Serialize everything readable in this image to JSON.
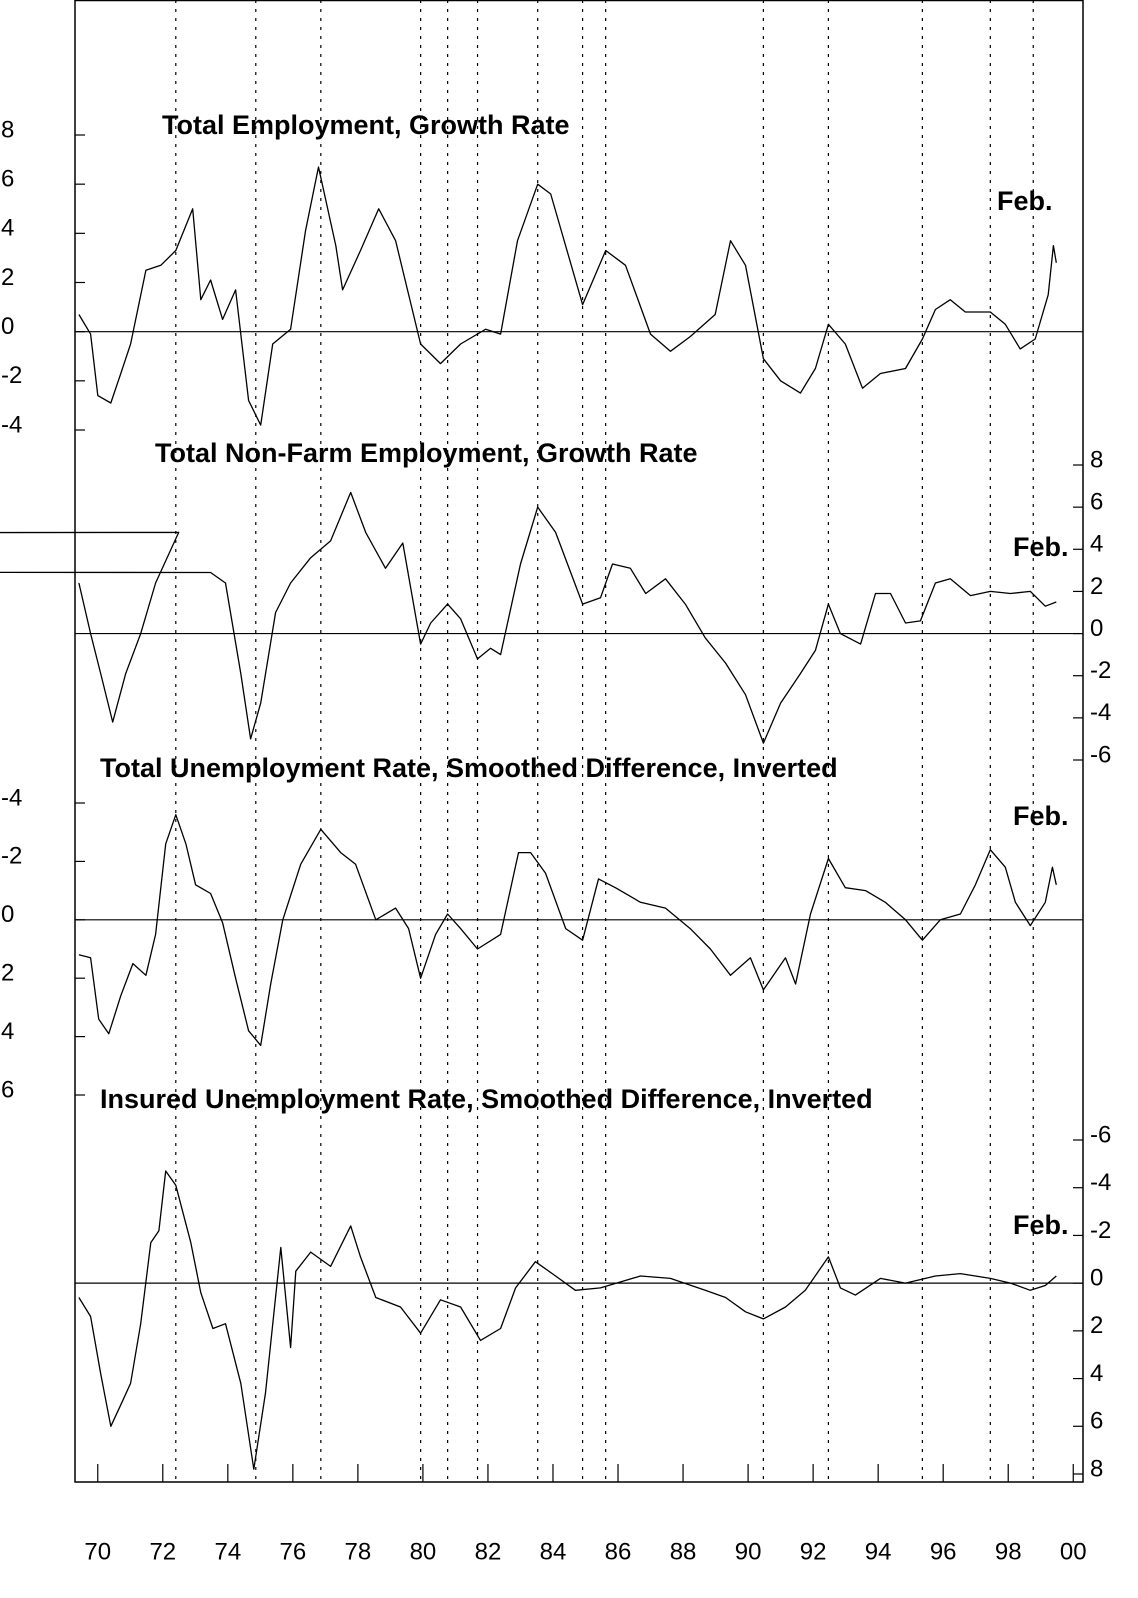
{
  "chart_data": [
    {
      "type": "line",
      "title": "Total Employment, Growth Rate",
      "annotation": "Feb.",
      "axis_side": "left",
      "y_inverted": false,
      "color": "#000000",
      "ylim": [
        -4,
        8
      ],
      "yticks": [
        8,
        6,
        4,
        2,
        0,
        -2,
        -4
      ],
      "x": [
        1969.42,
        1969.78,
        1970.0,
        1970.4,
        1970.71,
        1971.01,
        1971.48,
        1971.94,
        1972.4,
        1972.92,
        1973.17,
        1973.47,
        1973.84,
        1974.24,
        1974.64,
        1975.01,
        1975.38,
        1975.93,
        1976.39,
        1976.79,
        1977.32,
        1977.53,
        1978.08,
        1978.64,
        1979.16,
        1979.93,
        1980.54,
        1981.16,
        1981.93,
        1982.39,
        1982.91,
        1983.53,
        1983.93,
        1984.91,
        1985.62,
        1986.23,
        1987.0,
        1987.61,
        1988.22,
        1988.99,
        1989.46,
        1989.92,
        1990.47,
        1991.0,
        1991.61,
        1992.07,
        1992.47,
        1992.99,
        1993.52,
        1994.07,
        1994.84,
        1995.36,
        1995.76,
        1996.22,
        1996.68,
        1997.45,
        1997.91,
        1998.37,
        1998.83,
        1999.23,
        1999.39,
        1999.48
      ],
      "values": [
        0.7,
        -0.1,
        -2.6,
        -2.9,
        -1.7,
        -0.5,
        2.5,
        2.7,
        3.3,
        5.0,
        1.3,
        2.1,
        0.5,
        1.7,
        -2.8,
        -3.8,
        -0.5,
        0.1,
        4.1,
        6.7,
        3.5,
        1.7,
        3.3,
        5.0,
        3.7,
        -0.5,
        -1.3,
        -0.5,
        0.1,
        -0.1,
        3.7,
        6.0,
        5.6,
        1.1,
        3.3,
        2.7,
        -0.1,
        -0.8,
        -0.2,
        0.7,
        3.7,
        2.7,
        -1.1,
        -2.0,
        -2.5,
        -1.5,
        0.3,
        -0.5,
        -2.3,
        -1.7,
        -1.5,
        -0.3,
        0.9,
        1.3,
        0.8,
        0.8,
        0.3,
        -0.7,
        -0.3,
        1.5,
        3.5,
        2.8
      ]
    },
    {
      "type": "line",
      "title": "Total Non-Farm Employment, Growth Rate",
      "annotation": "Feb.",
      "axis_side": "right",
      "y_inverted": false,
      "color": "#000000",
      "ylim": [
        -6,
        8
      ],
      "yticks": [
        8,
        6,
        4,
        2,
        0,
        -2,
        -4,
        -6
      ],
      "x": [
        1969.42,
        1969.78,
        1970.09,
        1970.46,
        1970.86,
        1971.32,
        1971.78,
        1972.49,
        1173.01,
        1973.47,
        1973.93,
        1974.4,
        1974.7,
        1975.01,
        1975.47,
        1975.93,
        1976.55,
        1977.16,
        1977.78,
        1978.24,
        1978.85,
        1979.38,
        1979.93,
        1980.24,
        1980.76,
        1981.16,
        1981.68,
        1982.08,
        1982.39,
        1983.0,
        1983.53,
        1984.08,
        1984.91,
        1985.46,
        1985.83,
        1986.38,
        1986.85,
        1987.46,
        1988.07,
        1988.68,
        1989.31,
        1989.92,
        1990.47,
        1991.0,
        1991.61,
        1992.07,
        1992.47,
        1992.84,
        1993.46,
        1993.92,
        1994.38,
        1994.84,
        1995.3,
        1995.76,
        1996.22,
        1996.84,
        1997.45,
        1998.07,
        1998.68,
        1999.14,
        1999.48
      ],
      "values": [
        2.4,
        0.0,
        -1.9,
        -4.2,
        -1.9,
        0.0,
        2.4,
        4.8,
        3.8,
        2.9,
        2.4,
        -1.9,
        -5.0,
        -3.3,
        1.0,
        2.4,
        3.6,
        4.4,
        6.7,
        4.8,
        3.1,
        4.3,
        -0.5,
        0.5,
        1.4,
        0.7,
        -1.2,
        -0.7,
        -1.0,
        3.3,
        6.0,
        4.8,
        1.4,
        1.7,
        3.3,
        3.1,
        1.9,
        2.6,
        1.4,
        -0.2,
        -1.4,
        -2.9,
        -5.2,
        -3.3,
        -1.9,
        -0.8,
        1.4,
        0.0,
        -0.5,
        1.9,
        1.9,
        0.5,
        0.6,
        2.4,
        2.6,
        1.8,
        2.0,
        1.9,
        2.0,
        1.3,
        1.5
      ]
    },
    {
      "type": "line",
      "title": "Total Unemployment Rate, Smoothed Difference, Inverted",
      "annotation": "Feb.",
      "axis_side": "left",
      "y_inverted": true,
      "color": "#000000",
      "ylim": [
        -4,
        6
      ],
      "yticks": [
        -4,
        -2,
        0,
        2,
        4,
        6
      ],
      "x": [
        1969.42,
        1969.78,
        1970.03,
        1970.34,
        1970.71,
        1971.08,
        1971.48,
        1971.78,
        1972.09,
        1972.4,
        1972.71,
        1973.01,
        1973.47,
        1973.84,
        1974.24,
        1974.64,
        1975.01,
        1975.32,
        1975.69,
        1976.24,
        1976.86,
        1977.47,
        1977.93,
        1978.55,
        1979.16,
        1979.56,
        1979.93,
        1980.39,
        1980.76,
        1981.16,
        1981.68,
        1982.39,
        1982.94,
        1983.31,
        1983.77,
        1984.39,
        1984.91,
        1985.4,
        1985.92,
        1986.69,
        1987.46,
        1988.22,
        1988.84,
        1989.46,
        1990.07,
        1990.47,
        1991.15,
        1991.46,
        1991.92,
        1992.47,
        1992.99,
        1993.61,
        1994.22,
        1994.84,
        1995.36,
        1995.91,
        1996.53,
        1996.99,
        1997.45,
        1997.91,
        1998.22,
        1998.68,
        1999.14,
        1999.36,
        1999.48
      ],
      "values": [
        1.2,
        1.3,
        3.4,
        3.9,
        2.6,
        1.5,
        1.9,
        0.5,
        -2.6,
        -3.6,
        -2.6,
        -1.2,
        -0.9,
        0.1,
        2.0,
        3.8,
        4.3,
        2.2,
        0.0,
        -1.9,
        -3.1,
        -2.3,
        -1.9,
        0.0,
        -0.4,
        0.3,
        2.0,
        0.5,
        -0.2,
        0.3,
        1.0,
        0.5,
        -2.3,
        -2.3,
        -1.6,
        0.3,
        0.7,
        -1.4,
        -1.1,
        -0.6,
        -0.4,
        0.3,
        1.0,
        1.9,
        1.3,
        2.4,
        1.3,
        2.2,
        -0.2,
        -2.1,
        -1.1,
        -1.0,
        -0.6,
        0.0,
        0.7,
        0.0,
        -0.2,
        -1.2,
        -2.4,
        -1.8,
        -0.6,
        0.2,
        -0.6,
        -1.8,
        -1.2
      ]
    },
    {
      "type": "line",
      "title": "Insured Unemployment Rate, Smoothed Difference, Inverted",
      "annotation": "Feb.",
      "axis_side": "right",
      "y_inverted": true,
      "color": "#000000",
      "ylim": [
        -6,
        8
      ],
      "yticks": [
        -6,
        -4,
        -2,
        0,
        2,
        4,
        6,
        8
      ],
      "xlim": [
        1969.3,
        2000.3
      ],
      "xticks": [
        {
          "value": 1970,
          "label": "70"
        },
        {
          "value": 1972,
          "label": "72"
        },
        {
          "value": 1974,
          "label": "74"
        },
        {
          "value": 1976,
          "label": "76"
        },
        {
          "value": 1978,
          "label": "78"
        },
        {
          "value": 1980,
          "label": "80"
        },
        {
          "value": 1982,
          "label": "82"
        },
        {
          "value": 1984,
          "label": "84"
        },
        {
          "value": 1986,
          "label": "86"
        },
        {
          "value": 1988,
          "label": "88"
        },
        {
          "value": 1990,
          "label": "90"
        },
        {
          "value": 1992,
          "label": "92"
        },
        {
          "value": 1994,
          "label": "94"
        },
        {
          "value": 1996,
          "label": "96"
        },
        {
          "value": 1998,
          "label": "98"
        },
        {
          "value": 2000,
          "label": "00"
        }
      ],
      "vlines": [
        1972.4,
        1974.86,
        1976.86,
        1979.93,
        1980.76,
        1981.68,
        1983.53,
        1984.91,
        1985.62,
        1990.47,
        1992.47,
        1995.36,
        1997.45,
        1998.77
      ],
      "x": [
        1969.42,
        1969.78,
        1970.09,
        1970.4,
        1970.71,
        1971.01,
        1971.32,
        1971.63,
        1971.88,
        1972.09,
        1972.4,
        1972.86,
        1973.17,
        1973.54,
        1973.93,
        1974.4,
        1974.8,
        1975.16,
        1975.63,
        1975.93,
        1976.09,
        1976.55,
        1977.16,
        1977.78,
        1978.08,
        1978.55,
        1979.31,
        1979.93,
        1980.54,
        1981.16,
        1981.77,
        1982.39,
        1982.85,
        1983.46,
        1984.08,
        1984.69,
        1985.46,
        1986.69,
        1987.61,
        1988.68,
        1989.31,
        1989.92,
        1990.47,
        1991.15,
        1991.76,
        1992.47,
        1992.84,
        1993.3,
        1994.07,
        1994.84,
        1995.76,
        1996.53,
        1997.45,
        1998.07,
        1998.68,
        1999.14,
        1999.48
      ],
      "values": [
        0.6,
        1.4,
        3.8,
        6.0,
        5.1,
        4.2,
        1.7,
        -1.7,
        -2.2,
        -4.7,
        -4.1,
        -1.7,
        0.4,
        1.9,
        1.7,
        4.2,
        7.8,
        4.6,
        -1.5,
        2.7,
        -0.5,
        -1.3,
        -0.7,
        -2.4,
        -1.1,
        0.6,
        1.0,
        2.1,
        0.7,
        1.0,
        2.4,
        1.9,
        0.2,
        -0.9,
        -0.3,
        0.3,
        0.2,
        -0.3,
        -0.2,
        0.3,
        0.6,
        1.2,
        1.5,
        1.0,
        0.3,
        -1.1,
        0.2,
        0.5,
        -0.2,
        0.0,
        -0.3,
        -0.4,
        -0.2,
        0.0,
        0.3,
        0.1,
        -0.3
      ]
    }
  ]
}
